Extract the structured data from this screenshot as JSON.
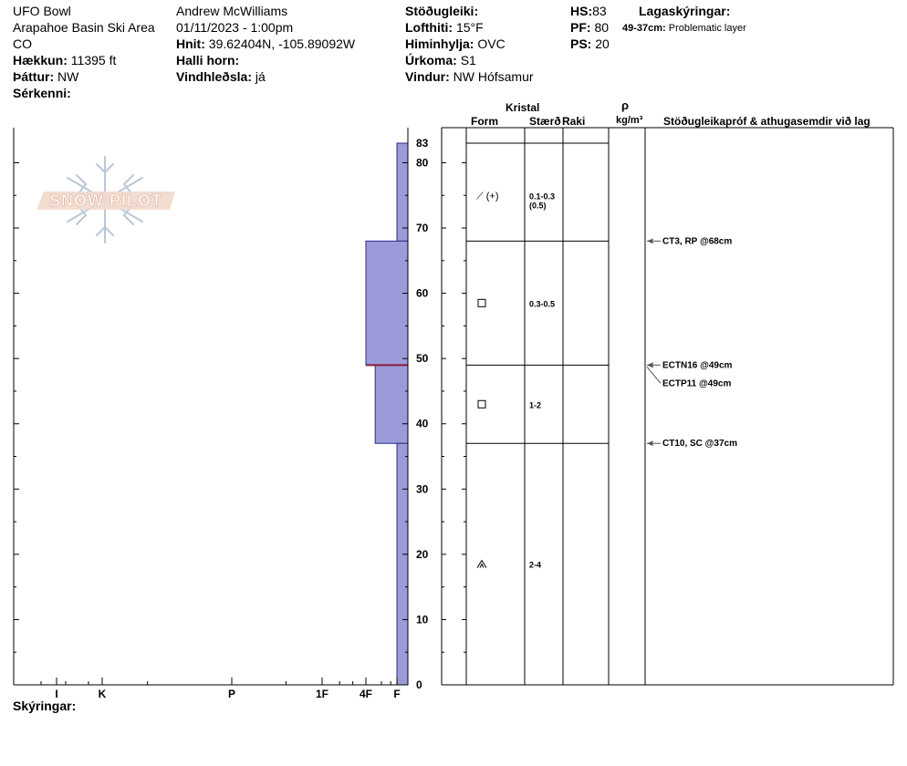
{
  "header": {
    "col1": {
      "location": "UFO Bowl",
      "area": "Arapahoe Basin Ski Area",
      "state": "CO",
      "elevation_label": "Hækkun:",
      "elevation_value": "11395 ft",
      "aspect_label": "Þáttur:",
      "aspect_value": "NW",
      "features_label": "Sérkenni:"
    },
    "col2": {
      "observer": "Andrew McWilliams",
      "datetime": "01/11/2023 - 1:00pm",
      "coords_label": "Hnit:",
      "coords_value": "39.62404N, -105.89092W",
      "slope_label": "Halli horn:",
      "windload_label": "Vindhleðsla:",
      "windload_value": "já"
    },
    "col3": {
      "stability_label": "Stöðugleiki:",
      "airtemp_label": "Lofthiti:",
      "airtemp_value": "15°F",
      "sky_label": "Himinhylja:",
      "sky_value": "OVC",
      "precip_label": "Úrkoma:",
      "precip_value": "S1",
      "wind_label": "Vindur:",
      "wind_value": "NW Hófsamur"
    },
    "col4": {
      "hs_label": "HS:",
      "hs_value": "83",
      "pf_label": "PF:",
      "pf_value": "80",
      "ps_label": "PS:",
      "ps_value": "20"
    },
    "layer_notes": {
      "title": "Lagaskýringar:",
      "range": "49-37cm:",
      "text": "Problematic layer"
    }
  },
  "logo": {
    "text": "SNOW PILOT"
  },
  "table_headers": {
    "crystal": "Kristal",
    "form": "Form",
    "size": "Stærð",
    "moisture": "Raki",
    "rho": "ρ",
    "density_unit": "kg/m³",
    "tests": "Stöðugleikapróf & athugasemdir við lag"
  },
  "footer": {
    "comments_label": "Skýringar:"
  },
  "colors": {
    "profile_fill": "#9b9bd9",
    "profile_stroke": "#2a2a8a",
    "problem_line": "#8b1a3a",
    "axis": "#000000"
  },
  "chart_data": {
    "type": "bar",
    "orientation": "horizontal-step",
    "ylim": [
      0,
      83
    ],
    "yticks": [
      0,
      10,
      20,
      30,
      40,
      50,
      60,
      70,
      80
    ],
    "ytop_label": "83",
    "hardness_ticks": [
      {
        "label": "I",
        "value": 1
      },
      {
        "label": "K",
        "value": 2
      },
      {
        "label": "P",
        "value": 3
      },
      {
        "label": "1F",
        "value": 4
      },
      {
        "label": "4F",
        "value": 5
      },
      {
        "label": "F",
        "value": 6
      }
    ],
    "xlim": [
      0,
      6.25
    ],
    "hardness_layers": [
      {
        "bottom": 68,
        "top": 83,
        "hardness": 6
      },
      {
        "bottom": 49,
        "top": 68,
        "hardness": 5
      },
      {
        "bottom": 37,
        "top": 49,
        "hardness": 5.3
      },
      {
        "bottom": 0,
        "top": 37,
        "hardness": 6
      }
    ],
    "layer_boundaries": [
      83,
      68,
      49,
      37
    ],
    "problem_line_height": 49,
    "layers": [
      {
        "mid": 75,
        "form": "precip-particles-graupel",
        "form_symbol": "⟋ (+)",
        "size": "0.1-0.3",
        "size2": "(0.5)"
      },
      {
        "mid": 58.5,
        "form": "faceted",
        "form_symbol": "□",
        "size": "0.3-0.5",
        "size2": ""
      },
      {
        "mid": 43,
        "form": "faceted",
        "form_symbol": "□",
        "size": "1-2",
        "size2": ""
      },
      {
        "mid": 18.5,
        "form": "depth-hoar",
        "form_symbol": "⩚",
        "size": "2-4",
        "size2": ""
      }
    ],
    "tests": [
      {
        "height": 68,
        "text": "CT3, RP @68cm"
      },
      {
        "height": 49,
        "text": "ECTN16 @49cm"
      },
      {
        "height": 49,
        "text": "ECTP11 @49cm",
        "offset": true
      },
      {
        "height": 37,
        "text": "CT10, SC @37cm"
      }
    ]
  }
}
